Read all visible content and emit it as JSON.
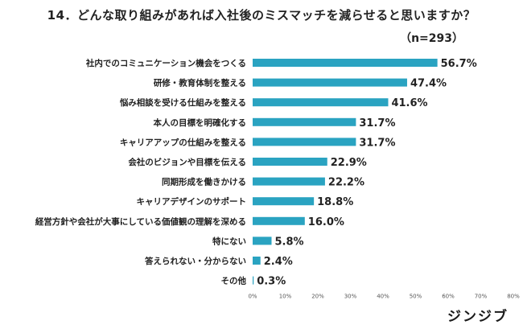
{
  "chart_data": {
    "type": "bar",
    "orientation": "horizontal",
    "title": "14．どんな取り組みがあれば入社後のミスマッチを減らせると思いますか？",
    "sample_size": "（n=293）",
    "categories": [
      "社内でのコミュニケーション機会をつくる",
      "研修・教育体制を整える",
      "悩み相談を受ける仕組みを整える",
      "本人の目標を明確化する",
      "キャリアアップの仕組みを整える",
      "会社のビジョンや目標を伝える",
      "同期形成を働きかける",
      "キャリアデザインのサポート",
      "経営方針や会社が大事にしている価値観の理解を深める",
      "特にない",
      "答えられない・分からない",
      "その他"
    ],
    "values": [
      56.7,
      47.4,
      41.6,
      31.7,
      31.7,
      22.9,
      22.2,
      18.8,
      16.0,
      5.8,
      2.4,
      0.3
    ],
    "value_labels": [
      "56.7%",
      "47.4%",
      "41.6%",
      "31.7%",
      "31.7%",
      "22.9%",
      "22.2%",
      "18.8%",
      "16.0%",
      "5.8%",
      "2.4%",
      "0.3%"
    ],
    "xlim": [
      0,
      80
    ],
    "x_ticks": [
      "0%",
      "10%",
      "20%",
      "30%",
      "40%",
      "50%",
      "60%",
      "70%",
      "80%"
    ],
    "bar_color": "#2aa3c1",
    "grid": false
  },
  "brand": {
    "logo_text": "ジンジブ"
  }
}
